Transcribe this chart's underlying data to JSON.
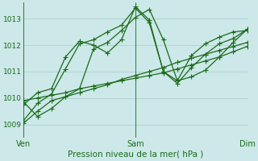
{
  "xlabel": "Pression niveau de la mer( hPa )",
  "background_color": "#cce8e8",
  "grid_color": "#aacccc",
  "line_color": "#1a6b1a",
  "xlim": [
    0,
    48
  ],
  "ylim": [
    1008.5,
    1013.6
  ],
  "yticks": [
    1009,
    1010,
    1011,
    1012,
    1013
  ],
  "xticks": [
    0,
    24,
    48
  ],
  "xtick_labels": [
    "Ven",
    "Sam",
    "Dim"
  ],
  "lines": [
    {
      "x": [
        0,
        3,
        6,
        9,
        12,
        15,
        18,
        21,
        24,
        27,
        30,
        33,
        36,
        39,
        42,
        45,
        48
      ],
      "y": [
        1009.85,
        1009.3,
        1009.6,
        1010.05,
        1010.35,
        1011.85,
        1012.1,
        1012.55,
        1013.05,
        1013.35,
        1012.2,
        1010.65,
        1010.8,
        1011.05,
        1011.55,
        1012.1,
        1012.6
      ]
    },
    {
      "x": [
        0,
        3,
        6,
        9,
        12,
        15,
        18,
        21,
        24,
        27,
        30,
        33,
        36,
        39,
        42,
        45,
        48
      ],
      "y": [
        1009.05,
        1009.5,
        1009.9,
        1010.05,
        1010.2,
        1010.35,
        1010.5,
        1010.7,
        1010.85,
        1011.0,
        1011.15,
        1011.35,
        1011.5,
        1011.65,
        1011.8,
        1011.95,
        1012.1
      ]
    },
    {
      "x": [
        0,
        3,
        6,
        9,
        12,
        15,
        18,
        21,
        24,
        27,
        30,
        33,
        36,
        39,
        42,
        45,
        48
      ],
      "y": [
        1009.9,
        1010.0,
        1010.1,
        1010.2,
        1010.35,
        1010.45,
        1010.55,
        1010.65,
        1010.75,
        1010.85,
        1010.95,
        1011.1,
        1011.25,
        1011.4,
        1011.55,
        1011.75,
        1011.95
      ]
    },
    {
      "x": [
        0,
        3,
        6,
        9,
        12,
        15,
        18,
        21,
        24,
        27,
        30,
        33,
        36,
        39,
        42,
        45,
        48
      ],
      "y": [
        1009.15,
        1009.8,
        1010.15,
        1011.1,
        1012.05,
        1012.2,
        1012.5,
        1012.75,
        1013.4,
        1012.85,
        1011.0,
        1010.65,
        1011.6,
        1012.05,
        1012.3,
        1012.5,
        1012.55
      ]
    },
    {
      "x": [
        0,
        3,
        6,
        9,
        12,
        15,
        18,
        21,
        24,
        27,
        30,
        33,
        36,
        39,
        42,
        45,
        48
      ],
      "y": [
        1009.75,
        1010.2,
        1010.35,
        1011.55,
        1012.15,
        1012.0,
        1011.7,
        1012.2,
        1013.45,
        1012.95,
        1011.0,
        1010.55,
        1011.15,
        1011.65,
        1012.05,
        1012.25,
        1012.6
      ]
    }
  ],
  "vlines": [
    0,
    24,
    48
  ],
  "marker": "+",
  "markersize": 4,
  "linewidth": 0.9,
  "ytick_fontsize": 6.5,
  "xtick_fontsize": 7,
  "xlabel_fontsize": 7.5
}
